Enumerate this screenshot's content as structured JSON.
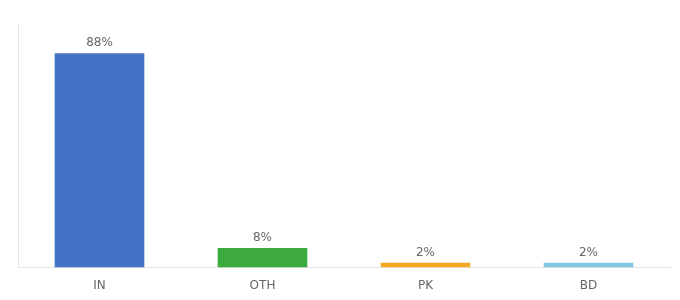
{
  "chart_data": {
    "type": "bar",
    "categories": [
      "IN",
      "OTH",
      "PK",
      "BD"
    ],
    "values": [
      88,
      8,
      2,
      2
    ],
    "value_labels": [
      "88%",
      "8%",
      "2%",
      "2%"
    ],
    "colors": [
      "#4472c4",
      "#3daa3d",
      "#f5a623",
      "#7ec8e3"
    ],
    "ylim": [
      0,
      100
    ],
    "data_labels": true,
    "tick_labels": "x",
    "grid": false
  }
}
